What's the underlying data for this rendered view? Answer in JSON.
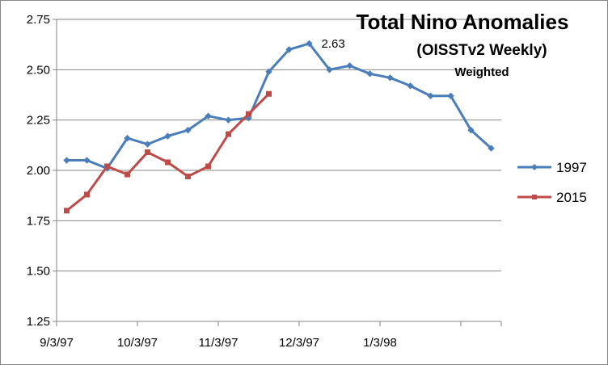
{
  "chart_data": {
    "type": "line",
    "title": "Total Nino Anomalies",
    "subtitle": "(OISSTv2 Weekly)",
    "subtitle2": "Weighted",
    "xlabel": "",
    "ylabel": "",
    "ylim": [
      1.25,
      2.75
    ],
    "yticks": [
      "1.25",
      "1.50",
      "1.75",
      "2.00",
      "2.25",
      "2.50",
      "2.75"
    ],
    "xticks": [
      "9/3/97",
      "10/3/97",
      "11/3/97",
      "12/3/97",
      "1/3/98"
    ],
    "grid": "horizontal",
    "legend_position": "right",
    "annotation": {
      "text": "2.63",
      "series": "1997",
      "index": 12
    },
    "weeks": 22,
    "series": [
      {
        "name": "1997",
        "color": "#4a7ebb",
        "marker": "diamond",
        "values": [
          2.05,
          2.05,
          2.01,
          2.16,
          2.13,
          2.17,
          2.2,
          2.27,
          2.25,
          2.26,
          2.49,
          2.6,
          2.63,
          2.5,
          2.52,
          2.48,
          2.46,
          2.42,
          2.37,
          2.37,
          2.2,
          2.11
        ]
      },
      {
        "name": "2015",
        "color": "#be4b48",
        "marker": "square",
        "values": [
          1.8,
          1.88,
          2.02,
          1.98,
          2.09,
          2.04,
          1.97,
          2.02,
          2.18,
          2.28,
          2.38
        ]
      }
    ]
  }
}
